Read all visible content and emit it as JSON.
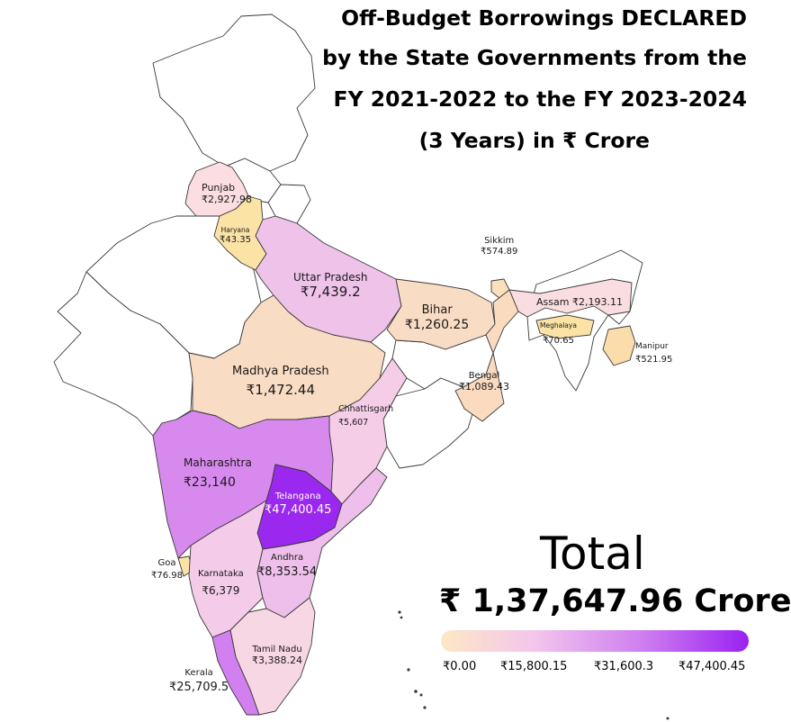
{
  "title": {
    "line1": "Off-Budget Borrowings DECLARED",
    "line2": "by the State Governments from the",
    "line3": "FY 2021-2022 to the FY 2023-2024",
    "line4": "(3 Years) in ₹ Crore"
  },
  "total": {
    "heading": "Total",
    "value": "₹ 1,37,647.96 Crore"
  },
  "legend": {
    "min_color": "#fde8c4",
    "max_color": "#9a22f2",
    "ticks": [
      "₹0.00",
      "₹15,800.15",
      "₹31,600.3",
      "₹47,400.45"
    ]
  },
  "states": [
    {
      "name": "Punjab",
      "value_label": "₹2,927.98",
      "value": 2927.98,
      "color": "#fbdde2"
    },
    {
      "name": "Haryana",
      "value_label": "₹43.35",
      "value": 43.35,
      "color": "#fbe3a6"
    },
    {
      "name": "Uttar Pradesh",
      "value_label": "₹7,439.2",
      "value": 7439.2,
      "color": "#efc2ea"
    },
    {
      "name": "Bihar",
      "value_label": "₹1,260.25",
      "value": 1260.25,
      "color": "#f9dcc4"
    },
    {
      "name": "Sikkim",
      "value_label": "₹574.89",
      "value": 574.89,
      "color": "#fbe0bd"
    },
    {
      "name": "Assam",
      "value_label": "₹2,193.11",
      "value": 2193.11,
      "color": "#fadde0"
    },
    {
      "name": "Meghalaya",
      "value_label": "₹70.65",
      "value": 70.65,
      "color": "#fbe3a6"
    },
    {
      "name": "Manipur",
      "value_label": "₹521.95",
      "value": 521.95,
      "color": "#fbdcab"
    },
    {
      "name": "Madhya Pradesh",
      "value_label": "₹1,472.44",
      "value": 1472.44,
      "color": "#f9dcc4"
    },
    {
      "name": "Bengal",
      "value_label": "₹1,089.43",
      "value": 1089.43,
      "color": "#fadbc0"
    },
    {
      "name": "Chhattisgarh",
      "value_label": "₹5,607",
      "value": 5607,
      "color": "#f5cde7"
    },
    {
      "name": "Maharashtra",
      "value_label": "₹23,140",
      "value": 23140,
      "color": "#d889ee"
    },
    {
      "name": "Telangana",
      "value_label": "₹47,400.45",
      "value": 47400.45,
      "color": "#9b28ef"
    },
    {
      "name": "Goa",
      "value_label": "₹76.98",
      "value": 76.98,
      "color": "#fbe3a6"
    },
    {
      "name": "Karnataka",
      "value_label": "₹6,379",
      "value": 6379,
      "color": "#f4cbe8"
    },
    {
      "name": "Andhra",
      "value_label": "₹8,353.54",
      "value": 8353.54,
      "color": "#edbfea"
    },
    {
      "name": "Tamil Nadu",
      "value_label": "₹3,388.24",
      "value": 3388.24,
      "color": "#f8d7e4"
    },
    {
      "name": "Kerala",
      "value_label": "₹25,709.5",
      "value": 25709.5,
      "color": "#d27fef"
    }
  ]
}
